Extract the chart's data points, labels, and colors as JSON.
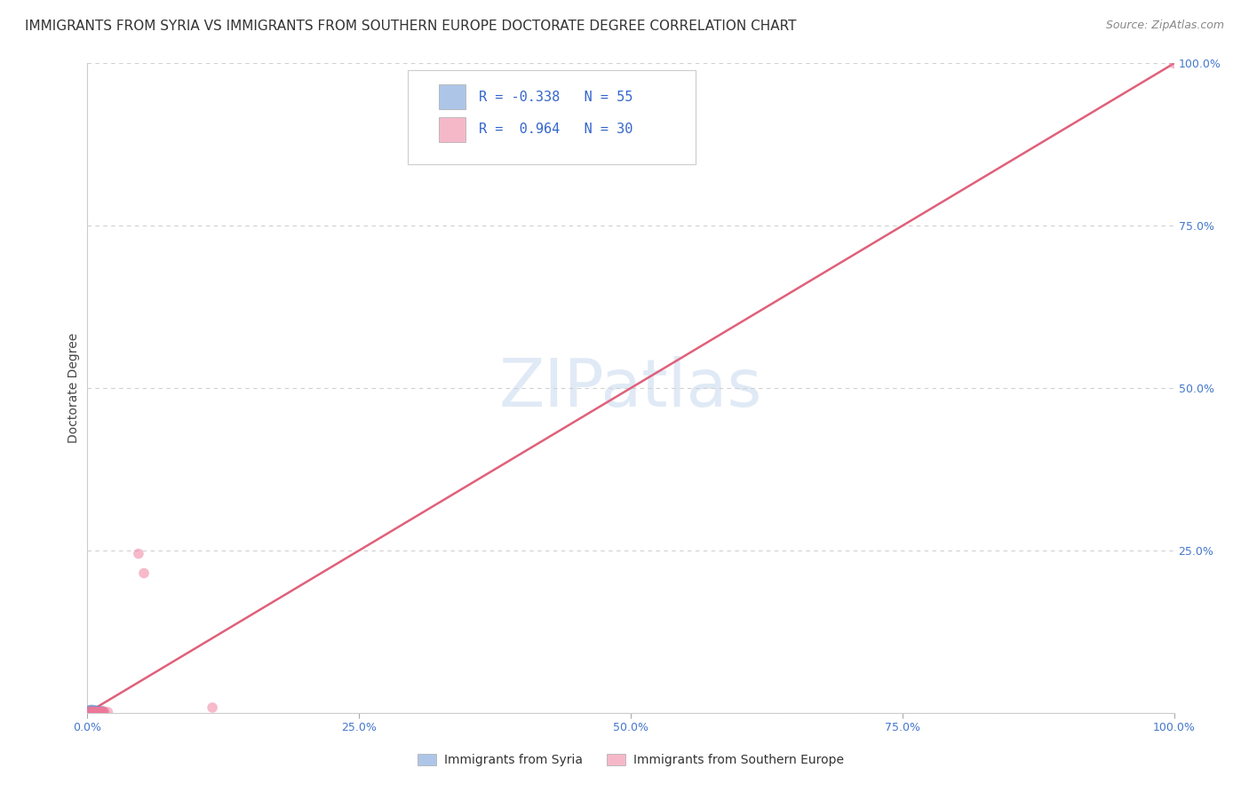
{
  "title": "IMMIGRANTS FROM SYRIA VS IMMIGRANTS FROM SOUTHERN EUROPE DOCTORATE DEGREE CORRELATION CHART",
  "source": "Source: ZipAtlas.com",
  "ylabel": "Doctorate Degree",
  "syria_color": "#adc6e8",
  "southern_europe_color": "#f5b8c8",
  "syria_scatter_color": "#6699cc",
  "southern_europe_scatter_color": "#ee7799",
  "regression_line_color_southern": "#e0607a",
  "xlim": [
    0,
    1.0
  ],
  "ylim": [
    0,
    1.0
  ],
  "xtick_vals": [
    0.0,
    0.25,
    0.5,
    0.75,
    1.0
  ],
  "xtick_labels": [
    "0.0%",
    "25.0%",
    "50.0%",
    "75.0%",
    "100.0%"
  ],
  "ytick_vals_right": [
    0.25,
    0.5,
    0.75,
    1.0
  ],
  "ytick_labels_right": [
    "25.0%",
    "50.0%",
    "75.0%",
    "100.0%"
  ],
  "watermark_text": "ZIPatlas",
  "grid_color": "#d0d0d0",
  "background_color": "#ffffff",
  "title_fontsize": 11,
  "source_fontsize": 9,
  "axis_label_fontsize": 10,
  "tick_fontsize": 9,
  "tick_color": "#4477cc",
  "syria_R": "-0.338",
  "syria_N": "55",
  "se_R": "0.964",
  "se_N": "30",
  "legend_label_syria": "Immigrants from Syria",
  "legend_label_se": "Immigrants from Southern Europe"
}
